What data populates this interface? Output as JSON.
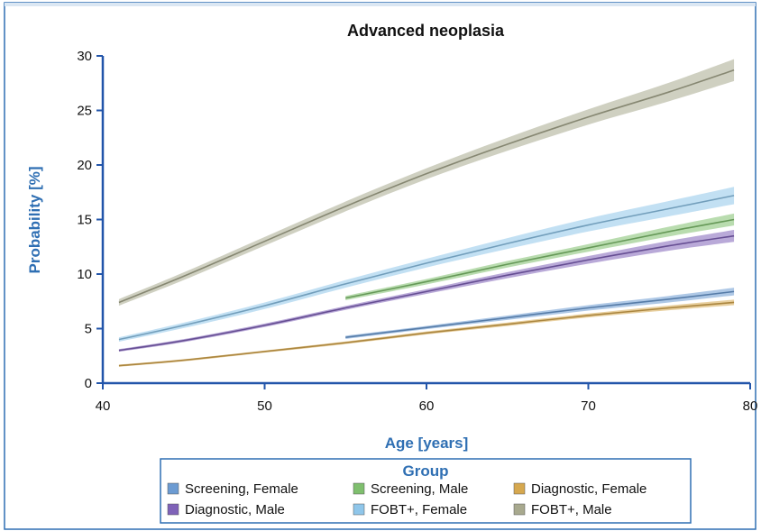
{
  "chart_data": {
    "type": "line",
    "title": "Advanced neoplasia",
    "xlabel": "Age [years]",
    "ylabel": "Probability [%]",
    "xlim": [
      40,
      80
    ],
    "ylim": [
      0,
      30
    ],
    "xticks": [
      40,
      50,
      60,
      70,
      80
    ],
    "yticks": [
      0,
      5,
      10,
      15,
      20,
      25,
      30
    ],
    "grid": false,
    "legend": {
      "title": "Group",
      "placement": "bottom"
    },
    "series": [
      {
        "name": "Screening, Female",
        "color": "#6c9bd2",
        "x": [
          55,
          60,
          65,
          70,
          75,
          79
        ],
        "y": [
          4.2,
          5.1,
          6.0,
          6.9,
          7.7,
          8.4
        ],
        "band": [
          0.15,
          0.15,
          0.2,
          0.25,
          0.3,
          0.35
        ]
      },
      {
        "name": "Screening, Male",
        "color": "#7fbf6e",
        "x": [
          55,
          60,
          65,
          70,
          75,
          79
        ],
        "y": [
          7.8,
          9.3,
          10.9,
          12.4,
          13.9,
          15.0
        ],
        "band": [
          0.2,
          0.25,
          0.3,
          0.35,
          0.45,
          0.55
        ]
      },
      {
        "name": "Diagnostic, Female",
        "color": "#d6a84f",
        "x": [
          41,
          45,
          50,
          55,
          60,
          65,
          70,
          75,
          79
        ],
        "y": [
          1.6,
          2.1,
          2.9,
          3.7,
          4.6,
          5.4,
          6.2,
          6.9,
          7.4
        ],
        "band": [
          0.1,
          0.1,
          0.1,
          0.12,
          0.14,
          0.16,
          0.18,
          0.22,
          0.25
        ]
      },
      {
        "name": "Diagnostic, Male",
        "color": "#7f62b8",
        "x": [
          41,
          45,
          50,
          55,
          60,
          65,
          70,
          75,
          79
        ],
        "y": [
          3.0,
          3.9,
          5.3,
          6.9,
          8.4,
          9.9,
          11.3,
          12.6,
          13.5
        ],
        "band": [
          0.12,
          0.14,
          0.16,
          0.18,
          0.22,
          0.28,
          0.35,
          0.45,
          0.55
        ]
      },
      {
        "name": "FOBT+, Female",
        "color": "#8fc6ea",
        "x": [
          41,
          45,
          50,
          55,
          60,
          65,
          70,
          75,
          79
        ],
        "y": [
          4.0,
          5.3,
          7.1,
          9.1,
          11.0,
          12.8,
          14.5,
          16.0,
          17.2
        ],
        "band": [
          0.2,
          0.25,
          0.3,
          0.35,
          0.4,
          0.5,
          0.6,
          0.7,
          0.8
        ]
      },
      {
        "name": "FOBT+, Male",
        "color": "#a8a98e",
        "x": [
          41,
          45,
          50,
          55,
          60,
          65,
          70,
          75,
          79
        ],
        "y": [
          7.4,
          9.8,
          13.0,
          16.2,
          19.2,
          21.9,
          24.4,
          26.7,
          28.7
        ],
        "band": [
          0.3,
          0.35,
          0.4,
          0.45,
          0.5,
          0.6,
          0.7,
          0.85,
          1.0
        ]
      }
    ]
  }
}
